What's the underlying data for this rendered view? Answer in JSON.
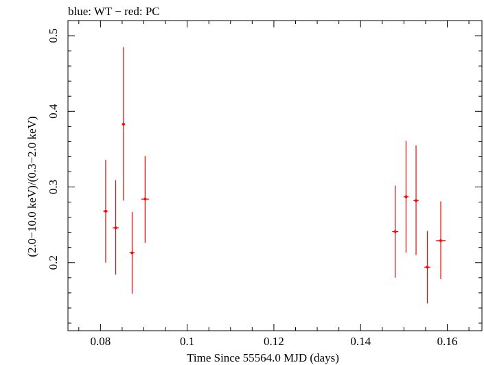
{
  "chart_data": {
    "type": "scatter",
    "title": "blue: WT − red: PC",
    "xlabel": "Time Since 55564.0 MJD (days)",
    "ylabel": "(2.0−10.0 keV)/(0.3−2.0 keV)",
    "xlim": [
      0.0725,
      0.168
    ],
    "ylim": [
      0.11,
      0.52
    ],
    "x_ticks": [
      0.08,
      0.1,
      0.12,
      0.14,
      0.16
    ],
    "x_tick_labels": [
      "0.08",
      "0.1",
      "0.12",
      "0.14",
      "0.16"
    ],
    "y_ticks": [
      0.2,
      0.3,
      0.4,
      0.5
    ],
    "y_tick_labels": [
      "0.2",
      "0.3",
      "0.4",
      "0.5"
    ],
    "grid": false,
    "series": [
      {
        "color": "#ff0000",
        "points": [
          {
            "x": 0.0812,
            "xerr": 0.0006,
            "y": 0.268,
            "ylo": 0.2,
            "yhi": 0.336
          },
          {
            "x": 0.0835,
            "xerr": 0.0007,
            "y": 0.246,
            "ylo": 0.184,
            "yhi": 0.309
          },
          {
            "x": 0.0853,
            "xerr": 0.0004,
            "y": 0.383,
            "ylo": 0.282,
            "yhi": 0.485
          },
          {
            "x": 0.0873,
            "xerr": 0.0006,
            "y": 0.213,
            "ylo": 0.159,
            "yhi": 0.267
          },
          {
            "x": 0.0903,
            "xerr": 0.0009,
            "y": 0.284,
            "ylo": 0.226,
            "yhi": 0.341
          },
          {
            "x": 0.148,
            "xerr": 0.0007,
            "y": 0.241,
            "ylo": 0.18,
            "yhi": 0.302
          },
          {
            "x": 0.1505,
            "xerr": 0.0006,
            "y": 0.287,
            "ylo": 0.213,
            "yhi": 0.361
          },
          {
            "x": 0.1528,
            "xerr": 0.0006,
            "y": 0.282,
            "ylo": 0.21,
            "yhi": 0.355
          },
          {
            "x": 0.1554,
            "xerr": 0.0007,
            "y": 0.194,
            "ylo": 0.146,
            "yhi": 0.242
          },
          {
            "x": 0.1585,
            "xerr": 0.0011,
            "y": 0.229,
            "ylo": 0.178,
            "yhi": 0.281
          }
        ]
      }
    ]
  }
}
